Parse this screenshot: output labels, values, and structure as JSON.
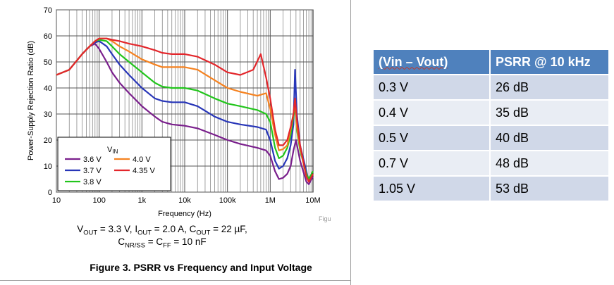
{
  "chart_data": {
    "type": "line",
    "title": "",
    "xlabel": "Frequency (Hz)",
    "ylabel": "Power-Supply Rejection Ratio (dB)",
    "x_scale": "log",
    "xlim": [
      10,
      10000000
    ],
    "ylim": [
      0,
      70
    ],
    "x_ticks": [
      {
        "value": 10,
        "label": "10"
      },
      {
        "value": 100,
        "label": "100"
      },
      {
        "value": 1000,
        "label": "1k"
      },
      {
        "value": 10000,
        "label": "10k"
      },
      {
        "value": 100000,
        "label": "100k"
      },
      {
        "value": 1000000,
        "label": "1M"
      },
      {
        "value": 10000000,
        "label": "10M"
      }
    ],
    "y_ticks": [
      0,
      10,
      20,
      30,
      40,
      50,
      60,
      70
    ],
    "grid": true,
    "legend": {
      "title": "VIN",
      "title_main": "V",
      "title_sub": "IN",
      "placement": "bottom-left"
    },
    "series": [
      {
        "name": "3.6 V",
        "color": "#7a1f8c",
        "x": [
          10,
          20,
          40,
          60,
          80,
          100,
          150,
          200,
          300,
          500,
          1000,
          2000,
          3000,
          5000,
          10000,
          20000,
          50000,
          100000,
          200000,
          500000,
          800000,
          1000000,
          1300000,
          1600000,
          2000000,
          2500000,
          3000000,
          3500000,
          4000000,
          5000000,
          7000000,
          8000000,
          10000000
        ],
        "y": [
          45,
          47,
          53,
          56,
          57,
          55,
          50,
          46,
          42,
          38,
          33,
          29,
          27,
          26,
          25.5,
          24.5,
          22,
          20,
          18.5,
          17,
          16,
          14,
          8,
          5,
          5.5,
          7,
          10,
          16,
          20,
          12,
          4,
          3,
          6
        ]
      },
      {
        "name": "3.7 V",
        "color": "#2836b8",
        "x": [
          10,
          20,
          40,
          60,
          80,
          100,
          150,
          200,
          300,
          500,
          1000,
          2000,
          3000,
          5000,
          10000,
          20000,
          50000,
          100000,
          200000,
          500000,
          800000,
          1000000,
          1300000,
          1600000,
          2000000,
          2500000,
          3000000,
          3500000,
          3800000,
          4200000,
          5000000,
          7000000,
          8000000,
          10000000
        ],
        "y": [
          45,
          47,
          53,
          56,
          57.5,
          58,
          56,
          53,
          49,
          45,
          40,
          36,
          35,
          34.5,
          34.5,
          33,
          29,
          27,
          26,
          25,
          24,
          20,
          12,
          9,
          10,
          13,
          18,
          26,
          47,
          30,
          18,
          8,
          4,
          7
        ]
      },
      {
        "name": "3.8 V",
        "color": "#22c51c",
        "x": [
          10,
          20,
          40,
          60,
          80,
          100,
          150,
          200,
          300,
          500,
          1000,
          2000,
          3000,
          5000,
          10000,
          20000,
          50000,
          100000,
          200000,
          500000,
          800000,
          1000000,
          1300000,
          1600000,
          2000000,
          2500000,
          3000000,
          3500000,
          3800000,
          4200000,
          5000000,
          7000000,
          8000000,
          10000000
        ],
        "y": [
          45,
          47,
          53,
          56,
          58,
          58.5,
          58,
          56,
          53,
          50,
          46,
          42,
          40.5,
          40,
          40,
          39,
          36,
          34,
          33,
          31.5,
          30,
          27,
          17,
          13,
          14,
          17,
          22,
          29,
          33,
          24,
          16,
          7,
          5,
          8
        ]
      },
      {
        "name": "4.0 V",
        "color": "#f58220",
        "x": [
          10,
          20,
          40,
          60,
          80,
          100,
          150,
          200,
          300,
          500,
          1000,
          2000,
          3000,
          5000,
          10000,
          20000,
          50000,
          100000,
          200000,
          500000,
          800000,
          1000000,
          1300000,
          1600000,
          2000000,
          2500000,
          3000000,
          3500000,
          3800000,
          4200000,
          5000000,
          7000000,
          8000000,
          10000000
        ],
        "y": [
          45,
          47,
          53,
          56,
          58,
          59,
          59,
          58,
          56,
          54,
          51,
          49,
          48,
          48,
          48,
          47,
          43,
          40,
          38.5,
          37,
          38,
          32,
          22,
          16,
          16.5,
          18,
          24,
          30,
          35,
          25,
          17,
          6,
          4,
          7
        ]
      },
      {
        "name": "4.35 V",
        "color": "#e3262b",
        "x": [
          10,
          20,
          40,
          60,
          80,
          100,
          150,
          200,
          300,
          500,
          1000,
          2000,
          3000,
          5000,
          10000,
          20000,
          50000,
          100000,
          200000,
          400000,
          600000,
          800000,
          1000000,
          1300000,
          1600000,
          2000000,
          2500000,
          3000000,
          3500000,
          3800000,
          4200000,
          5000000,
          7000000,
          8000000,
          10000000
        ],
        "y": [
          45,
          47,
          53,
          56,
          58,
          59,
          59,
          58.5,
          58,
          57,
          56,
          54.5,
          53.5,
          53,
          53,
          52,
          49,
          46,
          45,
          47,
          53,
          44,
          36,
          24,
          18,
          18,
          20,
          25,
          30,
          36,
          28,
          18,
          6,
          4,
          7
        ]
      }
    ]
  },
  "conditions": {
    "line1": {
      "vout_main": "V",
      "vout_sub": "OUT",
      "vout_val": " = 3.3 V, ",
      "iout_main": "I",
      "iout_sub": "OUT",
      "iout_val": " = 2.0 A, ",
      "cout_main": "C",
      "cout_sub": "OUT",
      "cout_val": " = 22 µF,"
    },
    "line2": {
      "cnr_main": "C",
      "cnr_sub": "NR/SS",
      "eq": " = ",
      "cff_main": "C",
      "cff_sub": "FF",
      "cff_val": " = 10 nF"
    }
  },
  "caption": "Figure 3. PSRR vs Frequency and Input Voltage",
  "figu_fragment": "Figu",
  "table": {
    "header": [
      "(Vin – Vout)",
      "PSRR @ 10 kHz"
    ],
    "rows": [
      {
        "delta": "0.3 V",
        "psrr": "26 dB"
      },
      {
        "delta": "0.4 V",
        "psrr": "35 dB"
      },
      {
        "delta": "0.5 V",
        "psrr": "40 dB"
      },
      {
        "delta": "0.7 V",
        "psrr": "48 dB"
      },
      {
        "delta": "1.05 V",
        "psrr": "53 dB"
      }
    ]
  }
}
